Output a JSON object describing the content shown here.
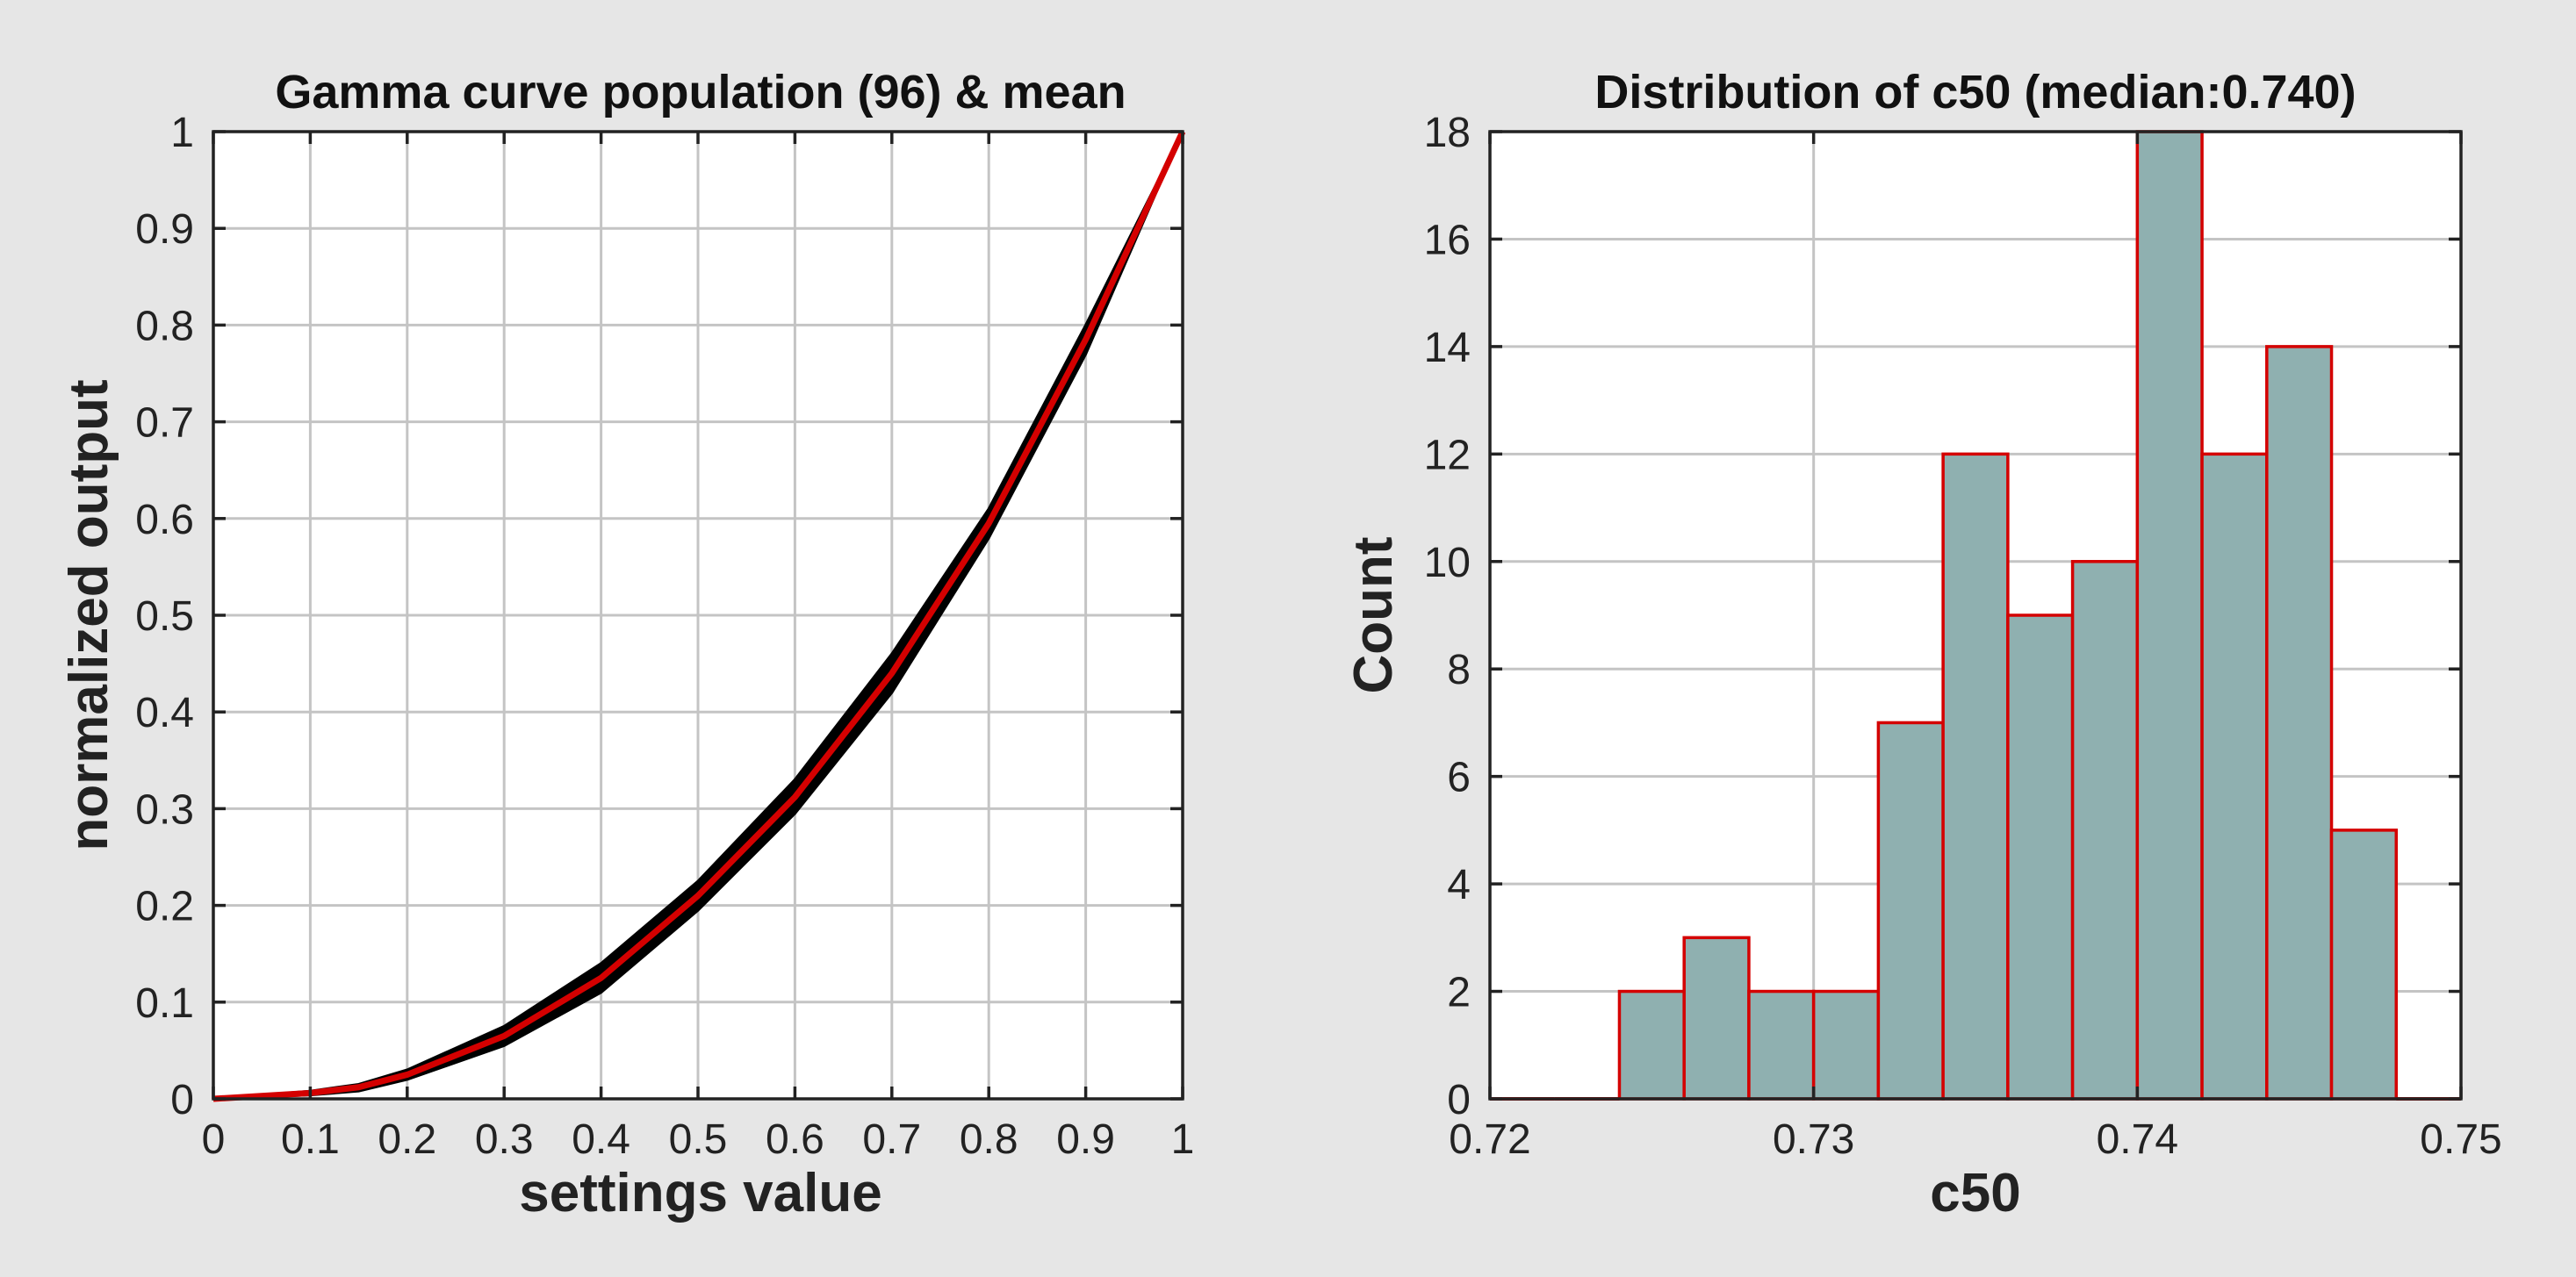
{
  "chart_data": [
    {
      "type": "line",
      "title": "Gamma curve population (96) & mean",
      "xlabel": "settings value",
      "ylabel": "normalized output",
      "xlim": [
        0,
        1
      ],
      "ylim": [
        0,
        1
      ],
      "xticks": [
        "0",
        "0.1",
        "0.2",
        "0.3",
        "0.4",
        "0.5",
        "0.6",
        "0.7",
        "0.8",
        "0.9",
        "1"
      ],
      "yticks": [
        "0",
        "0.1",
        "0.2",
        "0.3",
        "0.4",
        "0.5",
        "0.6",
        "0.7",
        "0.8",
        "0.9",
        "1"
      ],
      "grid": true,
      "population_color": "#000000",
      "mean_color": "#d40000",
      "x": [
        0,
        0.1,
        0.15,
        0.2,
        0.3,
        0.4,
        0.5,
        0.6,
        0.7,
        0.8,
        0.9,
        1.0
      ],
      "population_upper": [
        0,
        0.008,
        0.015,
        0.03,
        0.075,
        0.14,
        0.225,
        0.33,
        0.46,
        0.61,
        0.8,
        1.0
      ],
      "population_lower": [
        0,
        0.004,
        0.008,
        0.02,
        0.055,
        0.11,
        0.195,
        0.295,
        0.42,
        0.58,
        0.77,
        1.0
      ],
      "mean": [
        0,
        0.006,
        0.012,
        0.025,
        0.065,
        0.125,
        0.21,
        0.312,
        0.44,
        0.595,
        0.785,
        1.0
      ]
    },
    {
      "type": "bar",
      "title": "Distribution of c50 (median:0.740)",
      "xlabel": "c50",
      "ylabel": "Count",
      "xlim": [
        0.72,
        0.75
      ],
      "ylim": [
        0,
        18
      ],
      "xticks": [
        "0.72",
        "0.73",
        "0.74",
        "0.75"
      ],
      "yticks": [
        "0",
        "2",
        "4",
        "6",
        "8",
        "10",
        "12",
        "14",
        "16",
        "18"
      ],
      "grid": true,
      "bar_fill": "#8fb0b0",
      "bar_edge": "#d40000",
      "bin_width": 0.002,
      "bin_edges_start": [
        0.72,
        0.722,
        0.724,
        0.726,
        0.728,
        0.73,
        0.732,
        0.734,
        0.736,
        0.738,
        0.74,
        0.742,
        0.744,
        0.746,
        0.748
      ],
      "values": [
        0,
        0,
        2,
        3,
        2,
        2,
        7,
        12,
        9,
        10,
        18,
        12,
        14,
        5,
        0
      ]
    }
  ]
}
